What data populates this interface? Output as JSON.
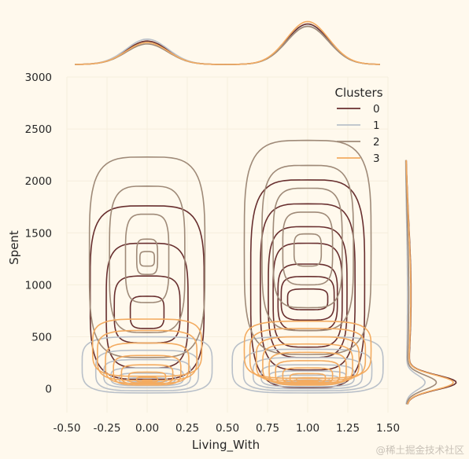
{
  "chart_data": {
    "type": "kde_jointplot",
    "xlabel": "Living_With",
    "ylabel": "Spent",
    "xlim": [
      -0.5,
      1.5
    ],
    "ylim": [
      -230,
      3000
    ],
    "x_ticks": [
      "-0.50",
      "-0.25",
      "0.00",
      "0.25",
      "0.50",
      "0.75",
      "1.00",
      "1.25",
      "1.50"
    ],
    "y_ticks": [
      "0",
      "500",
      "1000",
      "1500",
      "2000",
      "2500",
      "3000"
    ],
    "grid": true,
    "legend": {
      "title": "Clusters",
      "placement": "top-right",
      "entries": [
        {
          "label": "0",
          "color": "#682F2F"
        },
        {
          "label": "1",
          "color": "#B9C0C9"
        },
        {
          "label": "2",
          "color": "#9F8A78"
        },
        {
          "label": "3",
          "color": "#F3AB60"
        }
      ]
    },
    "series": [
      {
        "name": "0",
        "color": "#682F2F",
        "groups": [
          {
            "x": 0.0,
            "levels": [
              [
                0.355,
                1760,
                90
              ],
              [
                0.255,
                1400,
                200
              ],
              [
                0.205,
                1085,
                440
              ],
              [
                0.105,
                890,
                580
              ]
            ]
          },
          {
            "x": 1.0,
            "levels": [
              [
                0.355,
                2010,
                10
              ],
              [
                0.295,
                1780,
                180
              ],
              [
                0.245,
                1560,
                300
              ],
              [
                0.215,
                1400,
                400
              ],
              [
                0.185,
                1200,
                560
              ],
              [
                0.165,
                1080,
                660
              ],
              [
                0.125,
                960,
                760
              ]
            ]
          }
        ],
        "marginal_x": [
          0.48,
          0.83
        ],
        "marginal_y": 0.9
      },
      {
        "name": "1",
        "color": "#B9C0C9",
        "groups": [
          {
            "x": 0.0,
            "levels": [
              [
                0.405,
                500,
                -40
              ],
              [
                0.32,
                370,
                -20
              ],
              [
                0.27,
                280,
                10
              ],
              [
                0.225,
                200,
                30
              ],
              [
                0.175,
                150,
                50
              ],
              [
                0.125,
                105,
                65
              ],
              [
                0.075,
                80,
                75
              ],
              [
                0.035,
                60,
                80
              ]
            ]
          },
          {
            "x": 1.0,
            "levels": [
              [
                0.47,
                500,
                -40
              ],
              [
                0.4,
                380,
                -20
              ],
              [
                0.34,
                300,
                0
              ],
              [
                0.29,
                230,
                20
              ],
              [
                0.24,
                170,
                40
              ],
              [
                0.19,
                130,
                55
              ],
              [
                0.135,
                105,
                65
              ],
              [
                0.085,
                85,
                75
              ],
              [
                0.045,
                65,
                80
              ]
            ]
          }
        ],
        "marginal_x": [
          0.52,
          0.79
        ],
        "marginal_y": 0.35
      },
      {
        "name": "2",
        "color": "#9F8A78",
        "groups": [
          {
            "x": 0.0,
            "levels": [
              [
                0.36,
                2230,
                300
              ],
              [
                0.235,
                1950,
                540
              ],
              [
                0.135,
                1680,
                830
              ],
              [
                0.065,
                1440,
                1100
              ],
              [
                0.045,
                1320,
                1180
              ]
            ]
          },
          {
            "x": 1.0,
            "levels": [
              [
                0.395,
                2390,
                330
              ],
              [
                0.285,
                2150,
                560
              ],
              [
                0.215,
                1930,
                780
              ],
              [
                0.155,
                1700,
                1000
              ],
              [
                0.085,
                1490,
                1180
              ]
            ]
          }
        ],
        "marginal_x": [
          0.42,
          0.78
        ],
        "marginal_y": 0.55
      },
      {
        "name": "3",
        "color": "#F3AB60",
        "groups": [
          {
            "x": 0.0,
            "levels": [
              [
                0.34,
                670,
                120
              ],
              [
                0.31,
                560,
                80
              ],
              [
                0.26,
                440,
                50
              ],
              [
                0.21,
                320,
                35
              ],
              [
                0.16,
                230,
                45
              ],
              [
                0.115,
                160,
                55
              ],
              [
                0.065,
                110,
                65
              ],
              [
                0.03,
                85,
                70
              ]
            ]
          },
          {
            "x": 1.0,
            "levels": [
              [
                0.395,
                650,
                100
              ],
              [
                0.36,
                580,
                80
              ],
              [
                0.32,
                500,
                60
              ],
              [
                0.28,
                430,
                45
              ],
              [
                0.24,
                350,
                35
              ],
              [
                0.2,
                270,
                40
              ],
              [
                0.155,
                200,
                50
              ],
              [
                0.11,
                145,
                60
              ],
              [
                0.07,
                105,
                70
              ],
              [
                0.035,
                80,
                75
              ]
            ]
          }
        ],
        "marginal_x": [
          0.45,
          0.88
        ],
        "marginal_y": 0.85
      }
    ]
  },
  "watermark": "@稀土掘金技术社区"
}
